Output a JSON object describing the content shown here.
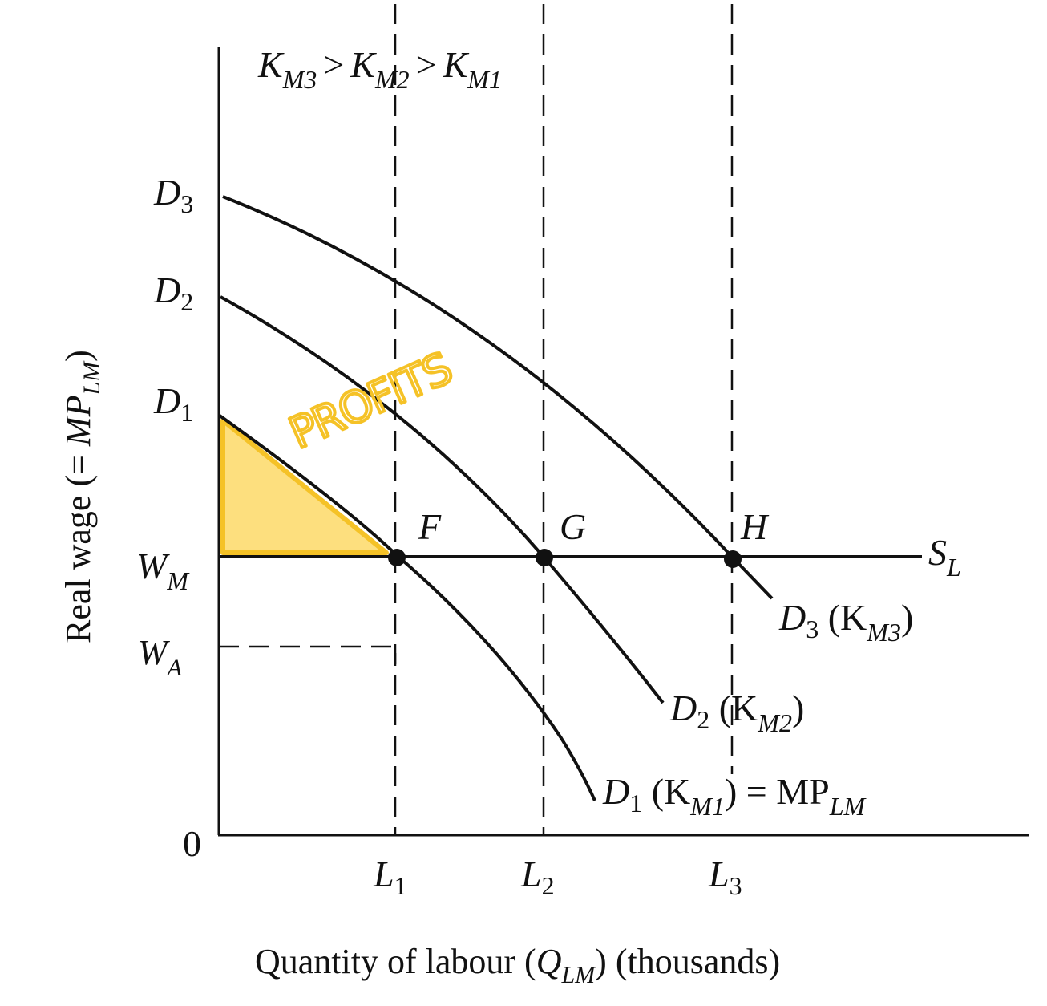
{
  "figure": {
    "capital_relation": {
      "k1": "K",
      "s1": "M3",
      "op1": ">",
      "k2": "K",
      "s2": "M2",
      "op2": ">",
      "k3": "K",
      "s3": "M1"
    },
    "y_axis": {
      "pre": "Real wage (= ",
      "mp": "MP",
      "sub": "LM",
      "post": ")"
    },
    "x_axis": {
      "pre": "Quantity of labour (",
      "q": "Q",
      "sub": "LM",
      "post": ") (thousands)"
    },
    "origin_label": "0",
    "y_marks": {
      "d3": {
        "main": "D",
        "sub": "3"
      },
      "d2": {
        "main": "D",
        "sub": "2"
      },
      "d1": {
        "main": "D",
        "sub": "1"
      },
      "wm": {
        "main": "W",
        "sub": "M"
      },
      "wa": {
        "main": "W",
        "sub": "A"
      }
    },
    "x_marks": {
      "l1": {
        "main": "L",
        "sub": "1"
      },
      "l2": {
        "main": "L",
        "sub": "2"
      },
      "l3": {
        "main": "L",
        "sub": "3"
      }
    },
    "points": {
      "f": "F",
      "g": "G",
      "h": "H"
    },
    "supply_label": {
      "main": "S",
      "sub": "L"
    },
    "curve_labels": {
      "d3": {
        "main": "D",
        "sub": "3",
        "open": " (K",
        "ksub": "M3",
        "close": ")"
      },
      "d2": {
        "main": "D",
        "sub": "2",
        "open": " (K",
        "ksub": "M2",
        "close": ")"
      },
      "d1": {
        "main": "D",
        "sub": "1",
        "open": " (K",
        "ksub": "M1",
        "close": ") = MP",
        "tail_sub": "LM"
      }
    },
    "annotation": {
      "text": "PROFITS",
      "fill_color": "#fddf7e",
      "stroke_color": "#f5c227"
    }
  }
}
